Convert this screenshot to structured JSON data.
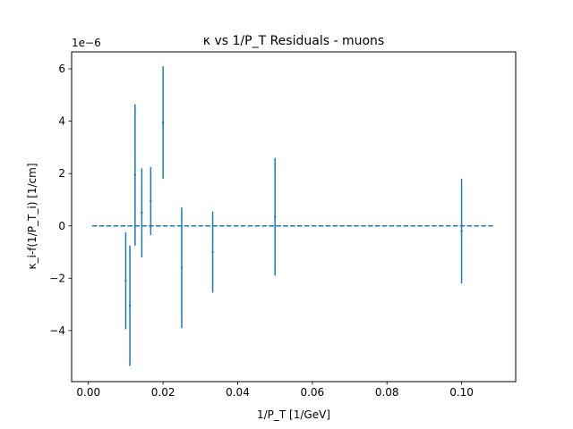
{
  "chart_data": {
    "type": "scatter",
    "title": "κ vs 1/P_T Residuals - muons",
    "xlabel": "1/P_T [1/GeV]",
    "ylabel": "κ_i-f(1/P_T_i) [1/cm]",
    "y_offset_label": "1e−6",
    "xlim": [
      -0.0045,
      0.1145
    ],
    "ylim": [
      -5.95,
      6.65
    ],
    "xticks": [
      0.0,
      0.02,
      0.04,
      0.06,
      0.08,
      0.1
    ],
    "xtick_labels": [
      "0.00",
      "0.02",
      "0.04",
      "0.06",
      "0.08",
      "0.10"
    ],
    "yticks": [
      -4,
      -2,
      0,
      2,
      4,
      6
    ],
    "ytick_labels": [
      "−4",
      "−2",
      "0",
      "2",
      "4",
      "6"
    ],
    "grid": false,
    "series": [
      {
        "x": [
          0.01,
          0.0111,
          0.0125,
          0.0143,
          0.0167,
          0.02,
          0.025,
          0.0333,
          0.05,
          0.1
        ],
        "y": [
          -2.1,
          -3.05,
          1.95,
          0.5,
          0.95,
          3.95,
          -1.6,
          -1.0,
          0.35,
          -0.2
        ],
        "yerr": [
          1.85,
          2.3,
          2.7,
          1.7,
          1.3,
          2.15,
          2.3,
          1.55,
          2.25,
          2.0
        ],
        "color": "#1f77b4"
      }
    ],
    "reference_line": {
      "x": [
        0.001,
        0.109
      ],
      "y": [
        0,
        0
      ],
      "style": "dashed",
      "color": "#1f77b4"
    }
  }
}
